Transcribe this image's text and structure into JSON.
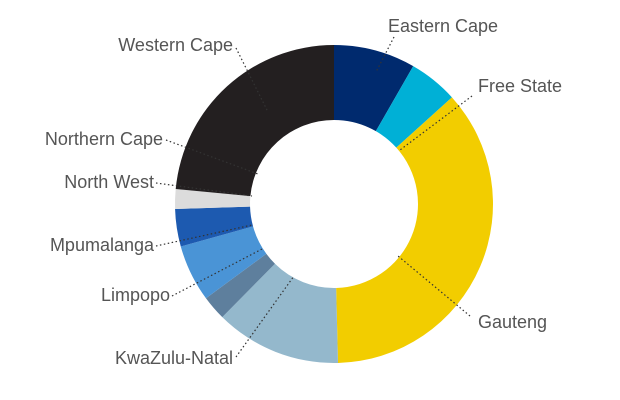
{
  "chart_data": {
    "type": "pie",
    "title": "",
    "categories": [
      "Eastern Cape",
      "Free State",
      "Gauteng",
      "KwaZulu-Natal",
      "Limpopo",
      "Mpumalanga",
      "North West",
      "Northern Cape",
      "Western Cape"
    ],
    "values": [
      8.3,
      5.0,
      36.3,
      12.8,
      2.5,
      5.8,
      3.8,
      2.0,
      23.5
    ],
    "colors": [
      "#002a6e",
      "#00b0d6",
      "#f2cd00",
      "#94b8cc",
      "#5e7f9d",
      "#4a94d6",
      "#1d5ab0",
      "#dcdcdc",
      "#231f20"
    ],
    "start_category": "Eastern Cape",
    "direction": "clockwise",
    "donut": true,
    "legend": "none",
    "labels_outside_with_dotted_leaders": true
  }
}
